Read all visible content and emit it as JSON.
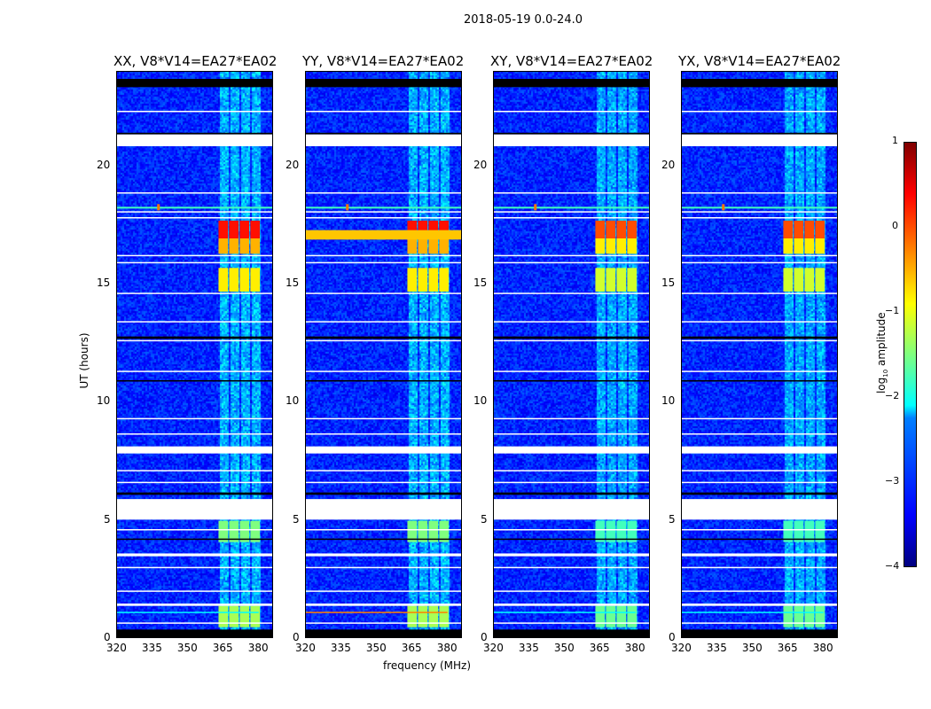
{
  "chart_data": {
    "type": "heatmap",
    "title": "2018-05-19 0.0-24.0",
    "xlabel": "frequency (MHz)",
    "ylabel": "UT (hours)",
    "xlim": [
      320,
      386.5
    ],
    "ylim": [
      0,
      24
    ],
    "xticks": [
      "320",
      "335",
      "350",
      "365",
      "380"
    ],
    "xtick_values": [
      320,
      335,
      350,
      365,
      380
    ],
    "yticks": [
      "0",
      "5",
      "10",
      "15",
      "20"
    ],
    "ytick_values": [
      0,
      5,
      10,
      15,
      20
    ],
    "panels": [
      {
        "title": "XX, V8*V14=EA27*EA02",
        "pol": "XX",
        "strong_row_color": "#00ffff"
      },
      {
        "title": "YY, V8*V14=EA27*EA02",
        "pol": "YY",
        "strong_row_color": "#ff8000"
      },
      {
        "title": "XY, V8*V14=EA27*EA02",
        "pol": "XY",
        "strong_row_color": "#00ffff"
      },
      {
        "title": "YX, V8*V14=EA27*EA02",
        "pol": "YX",
        "strong_row_color": "#00ffff"
      }
    ],
    "colorbar": {
      "label_prefix": "log",
      "label_sub": "10",
      "label_suffix": " amplitude",
      "range": [
        -4,
        1
      ],
      "ticks": [
        "1",
        "0",
        "−1",
        "−2",
        "−3",
        "−4"
      ],
      "tick_values": [
        1,
        0,
        -1,
        -2,
        -3,
        -4
      ]
    },
    "background_log_amplitude": -3.2,
    "rfi_band_columns_mhz": [
      [
        363,
        367
      ],
      [
        367.5,
        371.5
      ],
      [
        372,
        376
      ],
      [
        376.5,
        380.5
      ]
    ],
    "flagged_hours": [
      [
        20.85,
        21.35
      ],
      [
        5.05,
        5.92
      ],
      [
        7.85,
        8.15
      ],
      [
        3.5,
        3.62
      ],
      [
        1.4,
        1.5
      ],
      [
        22.3,
        22.35
      ],
      [
        18.85,
        18.9
      ],
      [
        18.05,
        18.1
      ],
      [
        17.8,
        17.85
      ],
      [
        16.2,
        16.25
      ],
      [
        15.9,
        15.95
      ],
      [
        14.6,
        14.65
      ],
      [
        13.4,
        13.45
      ],
      [
        12.6,
        12.65
      ],
      [
        11.3,
        11.35
      ],
      [
        9.3,
        9.35
      ],
      [
        8.65,
        8.7
      ],
      [
        7.1,
        7.15
      ],
      [
        6.6,
        6.65
      ],
      [
        4.6,
        4.65
      ],
      [
        3.0,
        3.05
      ],
      [
        2.0,
        2.05
      ],
      [
        0.65,
        0.7
      ]
    ],
    "no_data_hours": [
      [
        23.35,
        23.7
      ],
      [
        21.35,
        21.42
      ],
      [
        0.05,
        0.4
      ],
      [
        12.7,
        12.8
      ],
      [
        10.9,
        10.95
      ],
      [
        6.1,
        6.2
      ],
      [
        4.2,
        4.25
      ]
    ],
    "strong_rfi": [
      {
        "hours": [
          16.95,
          17.7
        ],
        "log_amplitude": 0.3
      },
      {
        "hours": [
          16.3,
          16.95
        ],
        "log_amplitude": -0.5
      },
      {
        "hours": [
          14.7,
          15.7
        ],
        "log_amplitude": -0.8
      },
      {
        "hours": [
          0.5,
          1.4
        ],
        "log_amplitude": -1.3
      },
      {
        "hours": [
          4.1,
          5.0
        ],
        "log_amplitude": -1.5
      }
    ],
    "narrow_rfi_hour": 18.25
  }
}
